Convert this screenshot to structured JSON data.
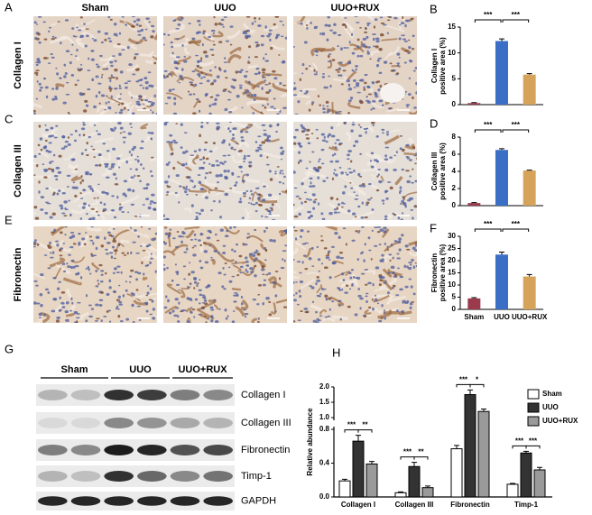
{
  "panel_labels": [
    "A",
    "B",
    "C",
    "D",
    "E",
    "F",
    "G",
    "H"
  ],
  "image_columns": [
    "Sham",
    "UUO",
    "UUO+RUX"
  ],
  "image_rows": [
    "Collagen I",
    "Collagen III",
    "Fibronectin"
  ],
  "blot": {
    "columns": [
      "Sham",
      "UUO",
      "UUO+RUX"
    ],
    "rows": [
      "Collagen I",
      "Collagen III",
      "Fibronectin",
      "Timp-1",
      "GAPDH"
    ]
  },
  "chart_data": [
    {
      "type": "bar",
      "ylabel": [
        "Collagen I",
        "positive area (%)"
      ],
      "categories": [
        null,
        null,
        null
      ],
      "values": [
        0.3,
        12.3,
        5.8
      ],
      "errors": [
        0.1,
        0.4,
        0.2
      ],
      "colors": [
        "#9b3a4c",
        "#3b6fc6",
        "#d6a35a"
      ],
      "ylim": [
        0,
        15
      ],
      "yticks": [
        0,
        5,
        10,
        15
      ],
      "significance": [
        "***",
        "***"
      ]
    },
    {
      "type": "bar",
      "ylabel": [
        "Collagen III",
        "positive area (%)"
      ],
      "categories": [
        null,
        null,
        null
      ],
      "values": [
        0.3,
        6.5,
        4.1
      ],
      "errors": [
        0.05,
        0.15,
        0.05
      ],
      "colors": [
        "#9b3a4c",
        "#3b6fc6",
        "#d6a35a"
      ],
      "ylim": [
        0,
        8
      ],
      "yticks": [
        0,
        2,
        4,
        6,
        8
      ],
      "significance": [
        "***",
        "***"
      ]
    },
    {
      "type": "bar",
      "ylabel": [
        "Fibronectin",
        "positive area (%)"
      ],
      "categories": [
        "Sham",
        "UUO",
        "UUO+RUX"
      ],
      "values": [
        4.5,
        22.5,
        13.5
      ],
      "errors": [
        0.3,
        1,
        0.8
      ],
      "colors": [
        "#9b3a4c",
        "#3b6fc6",
        "#d6a35a"
      ],
      "ylim": [
        0,
        30
      ],
      "yticks": [
        0,
        5,
        10,
        15,
        20,
        25,
        30
      ],
      "significance": [
        "***",
        "***"
      ]
    },
    {
      "type": "grouped_bar",
      "ylabel": "Relative abundance",
      "categories": [
        "Collagen I",
        "Collagen III",
        "Fibronectin",
        "Timp-1"
      ],
      "series": [
        {
          "name": "Sham",
          "color": "#ffffff",
          "values": [
            0.19,
            0.05,
            0.57,
            0.15
          ],
          "errors": [
            0.02,
            0.01,
            0.04,
            0.01
          ]
        },
        {
          "name": "UUO",
          "color": "#333333",
          "values": [
            0.66,
            0.36,
            1.75,
            0.52
          ],
          "errors": [
            0.07,
            0.05,
            0.15,
            0.02
          ]
        },
        {
          "name": "UUO+RUX",
          "color": "#9a9a9a",
          "values": [
            0.39,
            0.11,
            1.2,
            0.32
          ],
          "errors": [
            0.03,
            0.02,
            0.08,
            0.03
          ]
        }
      ],
      "significance": [
        [
          "***",
          "**"
        ],
        [
          "***",
          "**"
        ],
        [
          "***",
          "*"
        ],
        [
          "***",
          "***"
        ]
      ],
      "ylim": [
        0,
        2
      ],
      "ybreak": [
        0.8,
        1
      ],
      "yticks": [
        {
          "value": 0,
          "label": "0.0"
        },
        0.4,
        0.8,
        {
          "value": 1,
          "label": "1.0"
        },
        1.5,
        {
          "value": 2,
          "label": "2.0"
        }
      ],
      "legend": "upper right"
    }
  ]
}
